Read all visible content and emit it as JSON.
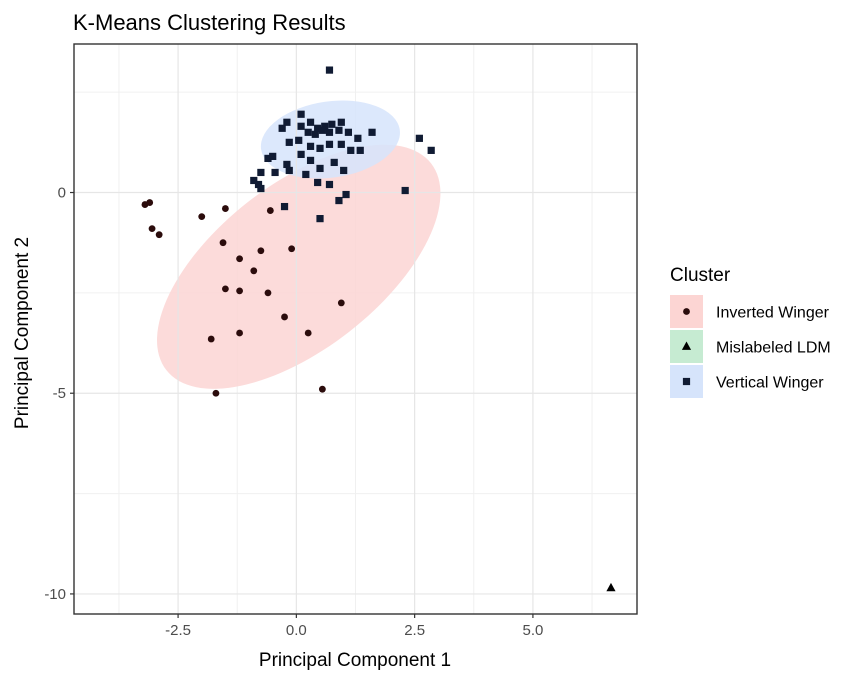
{
  "chart_data": {
    "type": "scatter",
    "title": "K-Means Clustering Results",
    "xlabel": "Principal Component 1",
    "ylabel": "Principal Component 2",
    "xlim": [
      -4.7,
      7.2
    ],
    "ylim": [
      -10.5,
      3.7
    ],
    "x_ticks": [
      -2.5,
      0,
      2.5,
      5
    ],
    "x_tick_labels": [
      "-2.5",
      "0.0",
      "2.5",
      "5.0"
    ],
    "y_ticks": [
      -10,
      -5,
      0
    ],
    "y_tick_labels": [
      "-10",
      "-5",
      "0"
    ],
    "grid": true,
    "legend": {
      "title": "Cluster",
      "position": "right"
    },
    "series": [
      {
        "name": "Inverted Winger",
        "marker": "circle",
        "color": "#2b0c0c",
        "ellipse_fill": "#fcd5d3",
        "ellipse": {
          "cx": 0.05,
          "cy": -1.85,
          "rx": 3.55,
          "ry": 2.05,
          "angle_deg": -38
        },
        "points": [
          [
            -3.2,
            -0.3
          ],
          [
            -3.1,
            -0.25
          ],
          [
            -3.05,
            -0.9
          ],
          [
            -2.9,
            -1.05
          ],
          [
            -2.0,
            -0.6
          ],
          [
            -1.5,
            -0.4
          ],
          [
            -1.55,
            -1.25
          ],
          [
            -1.2,
            -1.65
          ],
          [
            -0.9,
            -1.95
          ],
          [
            -0.75,
            -1.45
          ],
          [
            -0.55,
            -0.45
          ],
          [
            -1.5,
            -2.4
          ],
          [
            -1.2,
            -2.45
          ],
          [
            -0.6,
            -2.5
          ],
          [
            -0.25,
            -3.1
          ],
          [
            -1.2,
            -3.5
          ],
          [
            -1.8,
            -3.65
          ],
          [
            0.25,
            -3.5
          ],
          [
            0.95,
            -2.75
          ],
          [
            0.55,
            -4.9
          ],
          [
            -1.7,
            -5.0
          ],
          [
            -0.1,
            -1.4
          ]
        ]
      },
      {
        "name": "Mislabeled LDM",
        "marker": "triangle",
        "color": "#000000",
        "ellipse_fill": "#c6ebd2",
        "points": [
          [
            6.65,
            -9.85
          ]
        ]
      },
      {
        "name": "Vertical Winger",
        "marker": "square",
        "color": "#101b33",
        "ellipse_fill": "#d6e4fb",
        "ellipse": {
          "cx": 0.72,
          "cy": 1.32,
          "rx": 1.48,
          "ry": 0.95,
          "angle_deg": -8
        },
        "points": [
          [
            0.7,
            3.05
          ],
          [
            -0.6,
            0.85
          ],
          [
            -0.3,
            1.6
          ],
          [
            -0.2,
            1.75
          ],
          [
            0.1,
            1.95
          ],
          [
            0.3,
            1.75
          ],
          [
            0.45,
            1.6
          ],
          [
            0.6,
            1.65
          ],
          [
            0.75,
            1.7
          ],
          [
            0.95,
            1.75
          ],
          [
            0.1,
            1.65
          ],
          [
            0.25,
            1.5
          ],
          [
            0.4,
            1.45
          ],
          [
            0.55,
            1.55
          ],
          [
            0.7,
            1.5
          ],
          [
            0.9,
            1.55
          ],
          [
            1.1,
            1.5
          ],
          [
            1.3,
            1.35
          ],
          [
            1.6,
            1.5
          ],
          [
            -0.15,
            1.25
          ],
          [
            0.05,
            1.3
          ],
          [
            0.3,
            1.15
          ],
          [
            0.5,
            1.1
          ],
          [
            0.7,
            1.2
          ],
          [
            0.95,
            1.2
          ],
          [
            1.15,
            1.05
          ],
          [
            1.35,
            1.05
          ],
          [
            -0.5,
            0.9
          ],
          [
            -0.2,
            0.7
          ],
          [
            0.1,
            0.95
          ],
          [
            0.3,
            0.8
          ],
          [
            0.5,
            0.6
          ],
          [
            0.8,
            0.75
          ],
          [
            1.0,
            0.55
          ],
          [
            -0.75,
            0.5
          ],
          [
            -0.45,
            0.5
          ],
          [
            -0.15,
            0.55
          ],
          [
            0.2,
            0.45
          ],
          [
            0.45,
            0.25
          ],
          [
            0.7,
            0.2
          ],
          [
            -0.8,
            0.2
          ],
          [
            -0.9,
            0.3
          ],
          [
            -0.75,
            0.1
          ],
          [
            -0.25,
            -0.35
          ],
          [
            1.05,
            -0.05
          ],
          [
            0.9,
            -0.2
          ],
          [
            0.5,
            -0.65
          ],
          [
            2.3,
            0.05
          ],
          [
            2.6,
            1.35
          ],
          [
            2.85,
            1.05
          ]
        ]
      }
    ]
  }
}
